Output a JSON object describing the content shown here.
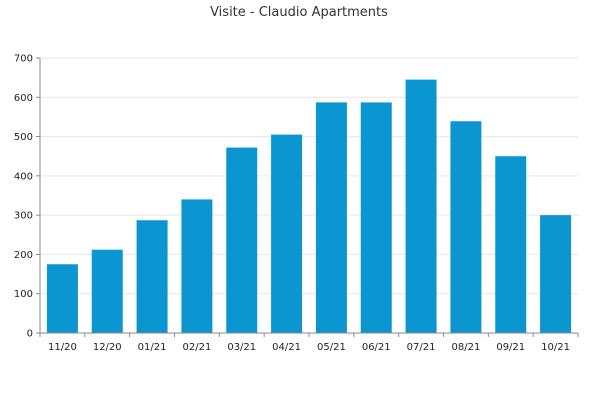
{
  "chart_data": {
    "type": "bar",
    "title": "Visite - Claudio Apartments",
    "xlabel": "",
    "ylabel": "",
    "categories": [
      "11/20",
      "12/20",
      "01/21",
      "02/21",
      "03/21",
      "04/21",
      "05/21",
      "06/21",
      "07/21",
      "08/21",
      "09/21",
      "10/21"
    ],
    "values": [
      175,
      212,
      287,
      340,
      472,
      505,
      587,
      587,
      645,
      539,
      450,
      300
    ],
    "ylim": [
      0,
      700
    ],
    "y_ticks": [
      "0",
      "100",
      "200",
      "300",
      "400",
      "500",
      "600",
      "700"
    ],
    "grid": true,
    "legend": "none",
    "colors": {
      "bar": "#0b96d1",
      "axis": "#8a8a8a",
      "grid": "#e6e6e6",
      "title": "#333333"
    }
  }
}
